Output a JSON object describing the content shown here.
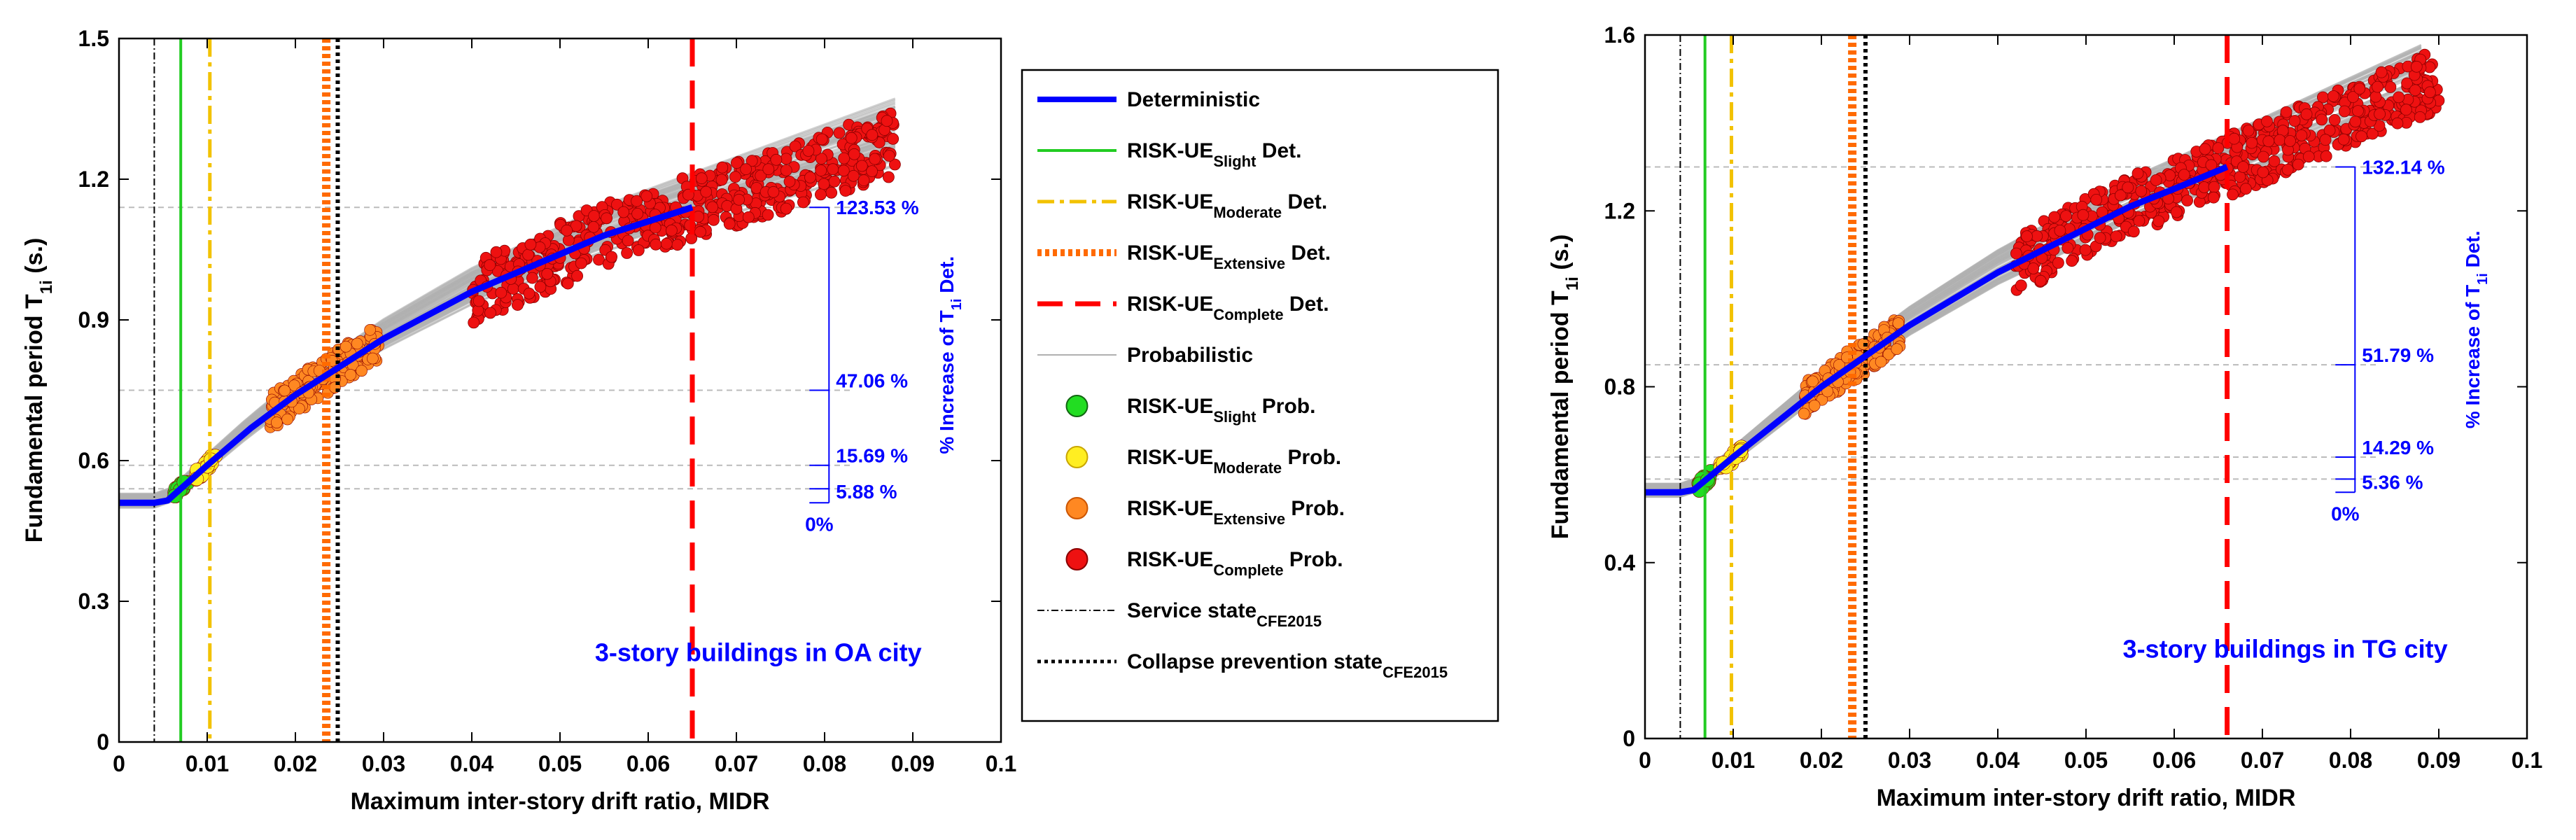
{
  "colors": {
    "deterministic": "#0000ff",
    "slight": "#22cc22",
    "moderate": "#f2c200",
    "extensive": "#ff6a00",
    "complete": "#ff0000",
    "probabilistic": "#b0b0b0",
    "text_blue": "#0000ff",
    "prob_slight": "#22dd22",
    "prob_moderate": "#ffee22",
    "prob_extensive": "#ff8822",
    "prob_complete": "#ee1111"
  },
  "legend": {
    "items": [
      {
        "key": "deterministic",
        "label": "Deterministic",
        "sub": "",
        "suffix": ""
      },
      {
        "key": "slight_det",
        "label": "RISK-UE",
        "sub": "Slight",
        "suffix": " Det."
      },
      {
        "key": "moderate_det",
        "label": "RISK-UE",
        "sub": "Moderate",
        "suffix": " Det."
      },
      {
        "key": "extensive_det",
        "label": "RISK-UE",
        "sub": "Extensive",
        "suffix": " Det."
      },
      {
        "key": "complete_det",
        "label": "RISK-UE",
        "sub": "Complete",
        "suffix": " Det."
      },
      {
        "key": "probabilistic",
        "label": "Probabilistic",
        "sub": "",
        "suffix": ""
      },
      {
        "key": "slight_prob",
        "label": "RISK-UE",
        "sub": "Slight",
        "suffix": " Prob."
      },
      {
        "key": "moderate_prob",
        "label": "RISK-UE",
        "sub": "Moderate",
        "suffix": " Prob."
      },
      {
        "key": "extensive_prob",
        "label": "RISK-UE",
        "sub": "Extensive",
        "suffix": " Prob."
      },
      {
        "key": "complete_prob",
        "label": "RISK-UE",
        "sub": "Complete",
        "suffix": " Prob."
      },
      {
        "key": "service_state",
        "label": "Service state",
        "sub": "CFE2015",
        "suffix": ""
      },
      {
        "key": "collapse_state",
        "label": "Collapse prevention state",
        "sub": "CFE2015",
        "suffix": ""
      }
    ]
  },
  "chart_data": [
    {
      "type": "scatter",
      "xlabel": "Maximum inter-story drift ratio, MIDR",
      "ylabel_main": "Fundamental period T",
      "ylabel_sub": "1i",
      "ylabel_unit": " (s.)",
      "xlim": [
        0,
        0.1
      ],
      "ylim": [
        0,
        1.5
      ],
      "xticks": [
        "0",
        "0.01",
        "0.02",
        "0.03",
        "0.04",
        "0.05",
        "0.06",
        "0.07",
        "0.08",
        "0.09",
        "0.1"
      ],
      "yticks": [
        "0",
        "0.3",
        "0.6",
        "0.9",
        "1.2",
        "1.5"
      ],
      "city_label": "3-story buildings in OA city",
      "right_axis_label_main": "% Increase of T",
      "right_axis_label_sub": "1i",
      "right_axis_label_suffix": " Det.",
      "deterministic": {
        "x": [
          0,
          0.004,
          0.0055,
          0.007,
          0.01,
          0.015,
          0.02,
          0.025,
          0.03,
          0.035,
          0.04,
          0.045,
          0.05,
          0.055,
          0.06,
          0.065
        ],
        "y": [
          0.51,
          0.51,
          0.515,
          0.54,
          0.59,
          0.67,
          0.74,
          0.8,
          0.86,
          0.91,
          0.96,
          1.0,
          1.04,
          1.08,
          1.11,
          1.14
        ]
      },
      "thresholds": {
        "service": 0.004,
        "slight": 0.007,
        "moderate": 0.0103,
        "extensive": 0.0235,
        "collapse": 0.0248,
        "complete": 0.065
      },
      "prob_clouds": [
        {
          "key": "slight",
          "x": [
            0.0063,
            0.0078
          ],
          "y_center": 0.54
        },
        {
          "key": "moderate",
          "x": [
            0.0085,
            0.011
          ],
          "y_center": 0.585
        },
        {
          "key": "extensive",
          "x": [
            0.017,
            0.0295
          ],
          "y_center": 0.72
        },
        {
          "key": "complete",
          "x": [
            0.04,
            0.088
          ],
          "y_center": 1.1
        }
      ],
      "percent_levels": [
        {
          "label": "123.53 %",
          "y": 1.14
        },
        {
          "label": "47.06 %",
          "y": 0.75
        },
        {
          "label": "15.69 %",
          "y": 0.59
        },
        {
          "label": "5.88 %",
          "y": 0.54
        },
        {
          "label": "0%",
          "y": 0.51
        }
      ]
    },
    {
      "type": "scatter",
      "xlabel": "Maximum inter-story drift ratio, MIDR",
      "ylabel_main": "Fundamental period T",
      "ylabel_sub": "1i",
      "ylabel_unit": " (s.)",
      "xlim": [
        0,
        0.1
      ],
      "ylim": [
        0,
        1.6
      ],
      "xticks": [
        "0",
        "0.01",
        "0.02",
        "0.03",
        "0.04",
        "0.05",
        "0.06",
        "0.07",
        "0.08",
        "0.09",
        "0.1"
      ],
      "yticks": [
        "0",
        "0.4",
        "0.8",
        "1.2",
        "1.6"
      ],
      "city_label": "3-story buildings in TG city",
      "right_axis_label_main": "% Increase of T",
      "right_axis_label_sub": "1i",
      "right_axis_label_suffix": " Det.",
      "deterministic": {
        "x": [
          0,
          0.004,
          0.0055,
          0.007,
          0.01,
          0.015,
          0.02,
          0.025,
          0.03,
          0.035,
          0.04,
          0.045,
          0.05,
          0.055,
          0.06,
          0.066
        ],
        "y": [
          0.56,
          0.56,
          0.565,
          0.59,
          0.64,
          0.72,
          0.8,
          0.87,
          0.94,
          1.0,
          1.06,
          1.11,
          1.16,
          1.21,
          1.25,
          1.3
        ]
      },
      "thresholds": {
        "service": 0.004,
        "slight": 0.0068,
        "moderate": 0.0098,
        "extensive": 0.0235,
        "collapse": 0.025,
        "complete": 0.066
      },
      "prob_clouds": [
        {
          "key": "slight",
          "x": [
            0.006,
            0.0075
          ],
          "y_center": 0.59
        },
        {
          "key": "moderate",
          "x": [
            0.0085,
            0.011
          ],
          "y_center": 0.64
        },
        {
          "key": "extensive",
          "x": [
            0.018,
            0.029
          ],
          "y_center": 0.87
        },
        {
          "key": "complete",
          "x": [
            0.042,
            0.09
          ],
          "y_center": 1.27
        }
      ],
      "percent_levels": [
        {
          "label": "132.14 %",
          "y": 1.3
        },
        {
          "label": "51.79 %",
          "y": 0.85
        },
        {
          "label": "14.29 %",
          "y": 0.64
        },
        {
          "label": "5.36 %",
          "y": 0.59
        },
        {
          "label": "0%",
          "y": 0.56
        }
      ]
    }
  ]
}
